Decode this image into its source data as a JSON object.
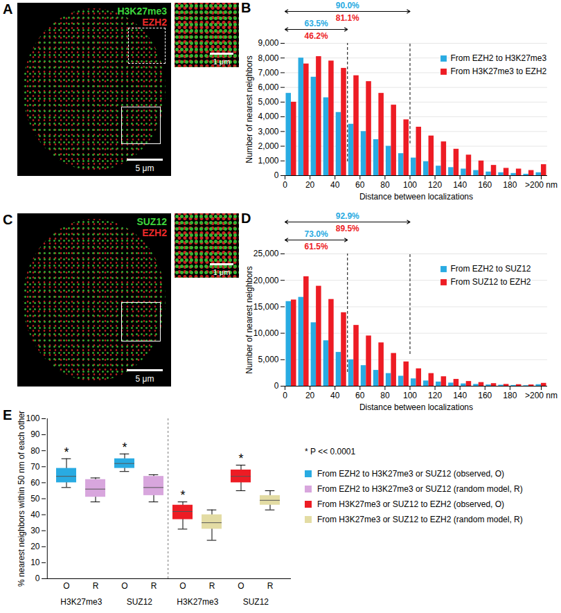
{
  "image_panels": [
    {
      "panel": "A",
      "labels": [
        {
          "text": "H3K27me3",
          "color": "#3dd63d"
        },
        {
          "text": "EZH2",
          "color": "#ee2a2a"
        }
      ],
      "scale_bar": "5 μm",
      "inset_scale_bar": "1 μm"
    },
    {
      "panel": "C",
      "labels": [
        {
          "text": "SUZ12",
          "color": "#3dd63d"
        },
        {
          "text": "EZH2",
          "color": "#ee2a2a"
        }
      ],
      "scale_bar": "5 μm",
      "inset_scale_bar": "1 μm"
    }
  ],
  "chart_data": [
    {
      "panel": "B",
      "type": "histogram",
      "x_label": "Distance between localizations",
      "y_label": "Number of nearest neighbors",
      "bins": [
        0,
        10,
        20,
        30,
        40,
        50,
        60,
        70,
        80,
        90,
        100,
        110,
        120,
        130,
        140,
        150,
        160,
        170,
        180,
        190,
        200,
        210
      ],
      "xlim": [
        0,
        210
      ],
      "xticks": [
        0,
        20,
        40,
        60,
        80,
        100,
        120,
        140,
        160,
        180,
        {
          "value": 205,
          "label": ">200 nm"
        }
      ],
      "ylim": [
        0,
        9000
      ],
      "yticks": [
        0,
        {
          "value": 1000,
          "label": "1,000"
        },
        {
          "value": 2000,
          "label": "2,000"
        },
        {
          "value": 3000,
          "label": "3,000"
        },
        {
          "value": 4000,
          "label": "4,000"
        },
        {
          "value": 5000,
          "label": "5,000"
        },
        {
          "value": 6000,
          "label": "6,000"
        },
        {
          "value": 7000,
          "label": "7,000"
        },
        {
          "value": 8000,
          "label": "8,000"
        },
        {
          "value": 9000,
          "label": "9,000"
        }
      ],
      "grid": true,
      "legend": "top-right",
      "series": [
        {
          "name": "From EZH2 to H3K27me3",
          "color": "#29abe2",
          "values": [
            5600,
            8000,
            6700,
            5300,
            4300,
            3500,
            3000,
            2450,
            2000,
            1500,
            1200,
            950,
            650,
            550,
            450,
            350,
            250,
            200,
            150,
            100,
            200
          ]
        },
        {
          "name": "From H3K27me3 to EZH2",
          "color": "#ed1c24",
          "values": [
            5000,
            7600,
            8100,
            7800,
            7300,
            6800,
            6400,
            5600,
            4800,
            3800,
            3300,
            2700,
            2300,
            1800,
            1400,
            1000,
            700,
            500,
            450,
            350,
            750
          ]
        }
      ],
      "annotations": [
        {
          "x1": 0,
          "x2": 50,
          "labels": [
            "63.5%",
            "46.2%"
          ]
        },
        {
          "x1": 0,
          "x2": 100,
          "labels": [
            "90.0%",
            "81.1%"
          ]
        }
      ]
    },
    {
      "panel": "D",
      "type": "histogram",
      "x_label": "Distance between localizations",
      "y_label": "Number of nearest neighbors",
      "bins": [
        0,
        10,
        20,
        30,
        40,
        50,
        60,
        70,
        80,
        90,
        100,
        110,
        120,
        130,
        140,
        150,
        160,
        170,
        180,
        190,
        200,
        210
      ],
      "xlim": [
        0,
        210
      ],
      "xticks": [
        0,
        20,
        40,
        60,
        80,
        100,
        120,
        140,
        160,
        180,
        {
          "value": 205,
          "label": ">200 nm"
        }
      ],
      "ylim": [
        0,
        25000
      ],
      "yticks": [
        0,
        {
          "value": 5000,
          "label": "5,000"
        },
        {
          "value": 10000,
          "label": "10,000"
        },
        {
          "value": 15000,
          "label": "15,000"
        },
        {
          "value": 20000,
          "label": "20,000"
        },
        {
          "value": 25000,
          "label": "25,000"
        }
      ],
      "grid": true,
      "legend": "top-right",
      "series": [
        {
          "name": "From EZH2 to SUZ12",
          "color": "#29abe2",
          "values": [
            16000,
            16800,
            12000,
            8600,
            6400,
            5000,
            3900,
            3000,
            2400,
            1900,
            1400,
            1000,
            800,
            600,
            450,
            350,
            250,
            200,
            150,
            100,
            300
          ]
        },
        {
          "name": "From SUZ12 to EZH2",
          "color": "#ed1c24",
          "values": [
            16300,
            20700,
            18900,
            16400,
            13900,
            11500,
            9500,
            8200,
            6200,
            4600,
            3300,
            2400,
            1800,
            1300,
            900,
            700,
            500,
            350,
            300,
            250,
            550
          ]
        }
      ],
      "annotations": [
        {
          "x1": 0,
          "x2": 50,
          "labels": [
            "73.0%",
            "61.5%"
          ]
        },
        {
          "x1": 0,
          "x2": 100,
          "labels": [
            "92.9%",
            "89.5%"
          ]
        }
      ]
    },
    {
      "panel": "E",
      "type": "box",
      "y_label": "% nearest neighbors within 50 nm of each other",
      "categories": [
        "O",
        "R",
        "O",
        "R",
        "O",
        "R",
        "O",
        "R"
      ],
      "groups": [
        "H3K27me3",
        "H3K27me3",
        "SUZ12",
        "SUZ12",
        "H3K27me3",
        "H3K27me3",
        "SUZ12",
        "SUZ12"
      ],
      "significance": [
        "*",
        null,
        "*",
        null,
        "*",
        null,
        "*",
        null
      ],
      "note": "* P << 0.0001",
      "ylim": [
        0,
        100
      ],
      "yticks": [
        0,
        10,
        20,
        30,
        40,
        50,
        60,
        70,
        80,
        90,
        100
      ],
      "series": [
        {
          "name": "From EZH2 to H3K27me3 or SUZ12 (observed, O)",
          "color": "#29abe2",
          "boxes": [
            {
              "min": 57,
              "q1": 60,
              "median": 64,
              "q3": 69,
              "max": 75
            },
            null,
            {
              "min": 67,
              "q1": 69,
              "median": 72,
              "q3": 75,
              "max": 78
            },
            null,
            null,
            null,
            null,
            null
          ]
        },
        {
          "name": "From EZH2 to H3K27me3 or SUZ12 (random model, R)",
          "color": "#d8a6dd",
          "boxes": [
            null,
            {
              "min": 48,
              "q1": 51,
              "median": 56,
              "q3": 62,
              "max": 63
            },
            null,
            {
              "min": 48,
              "q1": 52,
              "median": 57,
              "q3": 64,
              "max": 65
            },
            null,
            null,
            null,
            null
          ]
        },
        {
          "name": "From H3K27me3 or SUZ12 to EZH2 (observed, O)",
          "color": "#ed1c24",
          "boxes": [
            null,
            null,
            null,
            null,
            {
              "min": 31,
              "q1": 37,
              "median": 42,
              "q3": 46,
              "max": 48
            },
            null,
            {
              "min": 55,
              "q1": 60,
              "median": 64,
              "q3": 68,
              "max": 71
            },
            null
          ]
        },
        {
          "name": "From H3K27me3 or SUZ12 to EZH2 (random model, R)",
          "color": "#e3dca4",
          "boxes": [
            null,
            null,
            null,
            null,
            null,
            {
              "min": 24,
              "q1": 31,
              "median": 35,
              "q3": 40,
              "max": 43
            },
            null,
            {
              "min": 43,
              "q1": 46,
              "median": 49,
              "q3": 52,
              "max": 55
            }
          ]
        }
      ]
    }
  ]
}
